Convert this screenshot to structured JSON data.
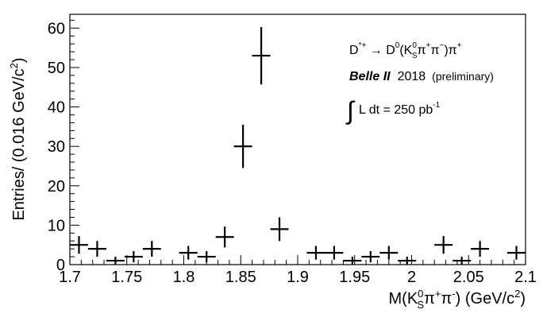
{
  "chart_data": {
    "type": "scatter",
    "style": "error-bar histogram",
    "xlabel": "M(K_S^0 π^+ π^-) (GeV/c^2)",
    "ylabel": "Entries/ (0.016 GeV/c^2)",
    "xlim": [
      1.7,
      2.1
    ],
    "ylim": [
      0,
      64
    ],
    "bin_width": 0.016,
    "x_ticks": [
      "1.7",
      "1.75",
      "1.8",
      "1.85",
      "1.9",
      "1.95",
      "2",
      "2.05",
      "2.1"
    ],
    "y_ticks": [
      "0",
      "10",
      "20",
      "30",
      "40",
      "50",
      "60"
    ],
    "x": [
      1.708,
      1.724,
      1.74,
      1.756,
      1.772,
      1.804,
      1.82,
      1.836,
      1.852,
      1.868,
      1.884,
      1.916,
      1.932,
      1.948,
      1.964,
      1.98,
      1.996,
      2.028,
      2.044,
      2.06,
      2.092
    ],
    "y": [
      5,
      4,
      1,
      2,
      4,
      3,
      2,
      7,
      30,
      53,
      9,
      3,
      3,
      1,
      2,
      3,
      1,
      5,
      1,
      4,
      3
    ],
    "grid": false,
    "annotations": {
      "decay": "D*+ → D0(KS0π+π−)π+",
      "experiment": "Belle II",
      "year": "2018",
      "status": "(preliminary)",
      "luminosity": "L dt = 250 pb-1"
    }
  },
  "labels": {
    "decay_Dstar": "D",
    "decay_Dstar_sup": "*+",
    "decay_arrow": " → ",
    "decay_D0": "D",
    "decay_D0_sup": "0",
    "decay_open": "(K",
    "decay_KS_sub": "S",
    "decay_KS_sup": "0",
    "decay_pi1": "π",
    "decay_pi1_sup": "+",
    "decay_pi2": "π",
    "decay_pi2_sup": "−",
    "decay_close": ")π",
    "decay_pi3_sup": "+",
    "experiment": "Belle II",
    "year": "2018",
    "status": "(preliminary)",
    "integral": "∫",
    "lumi_text": "L dt = 250 pb",
    "lumi_sup": "-1",
    "xlabel_M": "M(K",
    "xlabel_sub": "S",
    "xlabel_sup0": "0",
    "xlabel_pi1": "π",
    "xlabel_pi1_sup": "+",
    "xlabel_pi2": "π",
    "xlabel_pi2_sup": "-",
    "xlabel_unit": ") (GeV/c",
    "xlabel_unit_sup": "2",
    "xlabel_end": ")",
    "ylabel_main": "Entries/ (0.016 GeV/c",
    "ylabel_sup": "2",
    "ylabel_end": ")"
  }
}
